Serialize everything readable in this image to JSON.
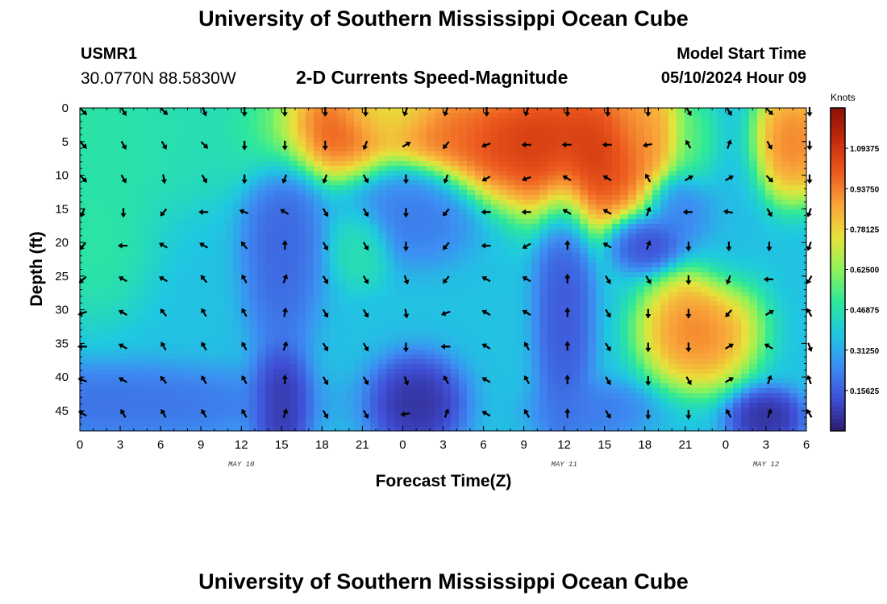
{
  "header": {
    "title": "University of Southern Mississippi Ocean Cube",
    "station_id": "USMR1",
    "coordinates": "30.0770N  88.5830W",
    "chart_title": "2-D Currents Speed-Magnitude",
    "model_start_label": "Model Start Time",
    "model_start_value": "05/10/2024 Hour 09"
  },
  "footer": {
    "title": "University of Southern Mississippi Ocean Cube"
  },
  "colors": {
    "arrow": "#000000",
    "colormap": [
      "#2b1a6e",
      "#3f4fd6",
      "#3d8df2",
      "#1fc8e0",
      "#2de89a",
      "#8ff25a",
      "#e8e23a",
      "#f9a43a",
      "#ec5a1e",
      "#c42a0a",
      "#8a1206"
    ]
  },
  "chart_data": {
    "type": "heatmap",
    "xlabel": "Forecast Time(Z)",
    "ylabel": "Depth (ft)",
    "x_ticks": [
      "0",
      "3",
      "6",
      "9",
      "12",
      "15",
      "18",
      "21",
      "0",
      "3",
      "6",
      "9",
      "12",
      "15",
      "18",
      "21",
      "0",
      "3",
      "6"
    ],
    "x_range_hours": [
      0,
      54
    ],
    "date_labels": [
      {
        "label": "MAY 10",
        "hour": 12
      },
      {
        "label": "MAY 11",
        "hour": 36
      },
      {
        "label": "MAY 12",
        "hour": 51
      }
    ],
    "y_ticks": [
      "0",
      "5",
      "10",
      "15",
      "20",
      "25",
      "30",
      "35",
      "40",
      "45"
    ],
    "y_range_ft": [
      0,
      48
    ],
    "colorbar": {
      "label": "Knots",
      "range": [
        0,
        1.25
      ],
      "tick_labels": [
        "1.09375",
        "0.93750",
        "0.78125",
        "0.62500",
        "0.46875",
        "0.31250",
        "0.15625"
      ]
    },
    "speed_features": [
      {
        "hour": 1.5,
        "depth": 3,
        "value": 0.5,
        "spread_h": 6,
        "spread_d": 10
      },
      {
        "hour": 1,
        "depth": 20,
        "value": 0.5,
        "spread_h": 3,
        "spread_d": 8
      },
      {
        "hour": 7,
        "depth": 4,
        "value": 0.46,
        "spread_h": 5,
        "spread_d": 6
      },
      {
        "hour": 13,
        "depth": 3,
        "value": 0.45,
        "spread_h": 3,
        "spread_d": 6
      },
      {
        "hour": 18,
        "depth": 3,
        "value": 1.1,
        "spread_h": 4,
        "spread_d": 5
      },
      {
        "hour": 23,
        "depth": 1,
        "value": 0.75,
        "spread_h": 3,
        "spread_d": 3
      },
      {
        "hour": 27,
        "depth": 3,
        "value": 1.0,
        "spread_h": 3,
        "spread_d": 4
      },
      {
        "hour": 33,
        "depth": 5,
        "value": 1.15,
        "spread_h": 5,
        "spread_d": 6
      },
      {
        "hour": 38,
        "depth": 7,
        "value": 1.15,
        "spread_h": 4,
        "spread_d": 8
      },
      {
        "hour": 42,
        "depth": 3,
        "value": 0.9,
        "spread_h": 2,
        "spread_d": 5
      },
      {
        "hour": 46,
        "depth": 5,
        "value": 0.6,
        "spread_h": 1.5,
        "spread_d": 5
      },
      {
        "hour": 48,
        "depth": 10,
        "value": 0.35,
        "spread_h": 2,
        "spread_d": 12
      },
      {
        "hour": 53,
        "depth": 5,
        "value": 1.0,
        "spread_h": 2.5,
        "spread_d": 6
      },
      {
        "hour": 15,
        "depth": 20,
        "value": 0.15,
        "spread_h": 2,
        "spread_d": 12
      },
      {
        "hour": 15,
        "depth": 44,
        "value": 0.02,
        "spread_h": 1.5,
        "spread_d": 6
      },
      {
        "hour": 21,
        "depth": 21,
        "value": 0.48,
        "spread_h": 1.5,
        "spread_d": 4
      },
      {
        "hour": 25,
        "depth": 16,
        "value": 0.2,
        "spread_h": 3,
        "spread_d": 5
      },
      {
        "hour": 25,
        "depth": 44,
        "value": 0.02,
        "spread_h": 2.5,
        "spread_d": 5
      },
      {
        "hour": 36,
        "depth": 30,
        "value": 0.12,
        "spread_h": 1.5,
        "spread_d": 14
      },
      {
        "hour": 42,
        "depth": 20,
        "value": 0.08,
        "spread_h": 2,
        "spread_d": 3
      },
      {
        "hour": 45,
        "depth": 15,
        "value": 0.2,
        "spread_h": 2,
        "spread_d": 4
      },
      {
        "hour": 46,
        "depth": 33,
        "value": 1.0,
        "spread_h": 3,
        "spread_d": 6
      },
      {
        "hour": 51,
        "depth": 46,
        "value": 0.02,
        "spread_h": 2,
        "spread_d": 3
      },
      {
        "hour": 2,
        "depth": 44,
        "value": 0.18,
        "spread_h": 10,
        "spread_d": 4
      },
      {
        "hour": 38,
        "depth": 45,
        "value": 0.2,
        "spread_h": 3,
        "spread_d": 3
      }
    ],
    "arrow_rows_ft": [
      0,
      5,
      10,
      15,
      20,
      25,
      30,
      35,
      40,
      45
    ],
    "arrow_hour_step": 3,
    "arrow_directions_deg": [
      [
        135,
        150,
        135,
        160,
        180,
        180,
        180,
        180,
        200,
        200,
        180,
        200,
        180,
        180,
        180,
        150,
        150,
        135,
        180
      ],
      [
        135,
        150,
        150,
        135,
        180,
        180,
        180,
        200,
        60,
        220,
        250,
        270,
        270,
        270,
        260,
        330,
        20,
        150,
        180
      ],
      [
        135,
        150,
        170,
        150,
        180,
        200,
        200,
        150,
        180,
        200,
        240,
        250,
        300,
        300,
        330,
        60,
        60,
        135,
        180
      ],
      [
        200,
        180,
        220,
        270,
        290,
        300,
        150,
        150,
        180,
        220,
        270,
        270,
        300,
        300,
        20,
        270,
        280,
        150,
        200
      ],
      [
        220,
        270,
        300,
        300,
        320,
        0,
        150,
        150,
        180,
        220,
        270,
        240,
        0,
        300,
        20,
        180,
        180,
        180,
        200
      ],
      [
        230,
        300,
        300,
        320,
        330,
        20,
        150,
        150,
        160,
        220,
        300,
        300,
        0,
        150,
        150,
        180,
        200,
        270,
        210
      ],
      [
        250,
        300,
        320,
        330,
        330,
        10,
        150,
        150,
        170,
        250,
        300,
        300,
        0,
        150,
        180,
        180,
        220,
        60,
        330
      ],
      [
        270,
        300,
        330,
        330,
        330,
        20,
        150,
        150,
        180,
        270,
        300,
        330,
        0,
        150,
        180,
        180,
        60,
        300,
        160
      ],
      [
        290,
        300,
        320,
        330,
        330,
        0,
        150,
        150,
        160,
        330,
        300,
        330,
        0,
        150,
        180,
        150,
        60,
        20,
        340
      ],
      [
        300,
        330,
        330,
        330,
        330,
        20,
        150,
        150,
        260,
        20,
        300,
        330,
        0,
        150,
        180,
        180,
        330,
        20,
        330
      ]
    ]
  }
}
